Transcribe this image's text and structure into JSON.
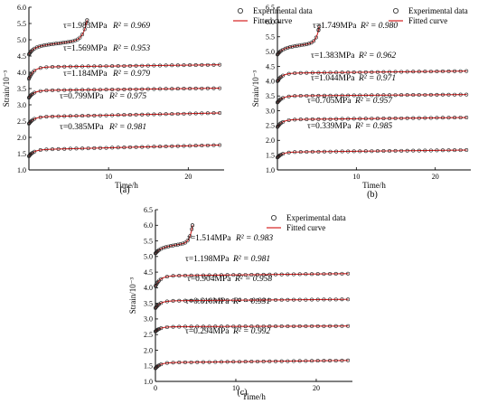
{
  "legend": {
    "marker_label": "Experimental data",
    "line_label": "Fitted curve"
  },
  "colors": {
    "line": "#d62020",
    "marker": "#202020",
    "axis": "#000000"
  },
  "chart_data": [
    {
      "type": "scatter",
      "panel_label": "(a)",
      "xlabel": "Time/h",
      "ylabel": "Strain/10⁻³",
      "xlim": [
        0,
        24.5
      ],
      "ylim": [
        1.0,
        6.0
      ],
      "xticks": [
        10,
        20
      ],
      "yticks": [
        1.0,
        1.5,
        2.0,
        2.5,
        3.0,
        3.5,
        4.0,
        4.5,
        5.0,
        5.5,
        6.0
      ],
      "legend_position": "top-right",
      "series": [
        {
          "stress": "τ=0.385MPa",
          "r2": "R² = 0.981",
          "inst": 1.42,
          "plateau": 1.62,
          "creep": 0.006,
          "end": 24
        },
        {
          "stress": "τ=0.799MPa",
          "r2": "R² = 0.975",
          "inst": 2.42,
          "plateau": 2.63,
          "creep": 0.005,
          "end": 24
        },
        {
          "stress": "τ=1.184MPa",
          "r2": "R² = 0.979",
          "inst": 3.22,
          "plateau": 3.44,
          "creep": 0.003,
          "end": 24
        },
        {
          "stress": "τ=1.569MPa",
          "r2": "R² = 0.953",
          "inst": 3.8,
          "plateau": 4.16,
          "creep": 0.003,
          "end": 24
        },
        {
          "stress": "τ=1.983MPa",
          "r2": "R² = 0.969",
          "inst": 4.55,
          "plateau": 4.78,
          "creep": 0.03,
          "end": 7.3,
          "fail": 5.6
        }
      ]
    },
    {
      "type": "scatter",
      "panel_label": "(b)",
      "xlabel": "Time/h",
      "ylabel": "Strain/10⁻³",
      "xlim": [
        0,
        24.5
      ],
      "ylim": [
        1.0,
        6.5
      ],
      "xticks": [
        10,
        20
      ],
      "yticks": [
        1.0,
        1.5,
        2.0,
        2.5,
        3.0,
        3.5,
        4.0,
        4.5,
        5.0,
        5.5,
        6.0,
        6.5
      ],
      "legend_position": "top-right",
      "series": [
        {
          "stress": "τ=0.339MPa",
          "r2": "R² = 0.985",
          "inst": 1.42,
          "plateau": 1.6,
          "creep": 0.003,
          "end": 24
        },
        {
          "stress": "τ=0.705MPa",
          "r2": "R² = 0.957",
          "inst": 2.45,
          "plateau": 2.7,
          "creep": 0.003,
          "end": 24
        },
        {
          "stress": "τ=1.044MPa",
          "r2": "R² = 0.971",
          "inst": 3.28,
          "plateau": 3.5,
          "creep": 0.002,
          "end": 24
        },
        {
          "stress": "τ=1.383MPa",
          "r2": "R² = 0.962",
          "inst": 4.0,
          "plateau": 4.27,
          "creep": 0.003,
          "end": 24
        },
        {
          "stress": "τ=1.749MPa",
          "r2": "R² = 0.980",
          "inst": 4.9,
          "plateau": 5.1,
          "creep": 0.04,
          "end": 5.3,
          "fail": 5.85
        }
      ]
    },
    {
      "type": "scatter",
      "panel_label": "(c)",
      "xlabel": "Time/h",
      "ylabel": "Strain/10⁻³",
      "xlim": [
        0,
        24.5
      ],
      "ylim": [
        1.0,
        6.5
      ],
      "xticks": [
        0,
        10,
        20
      ],
      "yticks": [
        1.0,
        1.5,
        2.0,
        2.5,
        3.0,
        3.5,
        4.0,
        4.5,
        5.0,
        5.5,
        6.0,
        6.5
      ],
      "legend_position": "top-right",
      "series": [
        {
          "stress": "τ=0.294MPa",
          "r2": "R² = 0.992",
          "inst": 1.42,
          "plateau": 1.6,
          "creep": 0.003,
          "end": 24
        },
        {
          "stress": "τ=0.610MPa",
          "r2": "R² = 0.931",
          "inst": 2.6,
          "plateau": 2.75,
          "creep": 0.001,
          "end": 24
        },
        {
          "stress": "τ=0.904MPa",
          "r2": "R² = 0.958",
          "inst": 3.35,
          "plateau": 3.58,
          "creep": 0.002,
          "end": 24
        },
        {
          "stress": "τ=1.198MPa",
          "r2": "R² = 0.981",
          "inst": 4.05,
          "plateau": 4.38,
          "creep": 0.003,
          "end": 24
        },
        {
          "stress": "τ=1.514MPa",
          "r2": "R² = 0.983",
          "inst": 5.1,
          "plateau": 5.27,
          "creep": 0.04,
          "end": 4.6,
          "fail": 6.0
        }
      ]
    }
  ]
}
